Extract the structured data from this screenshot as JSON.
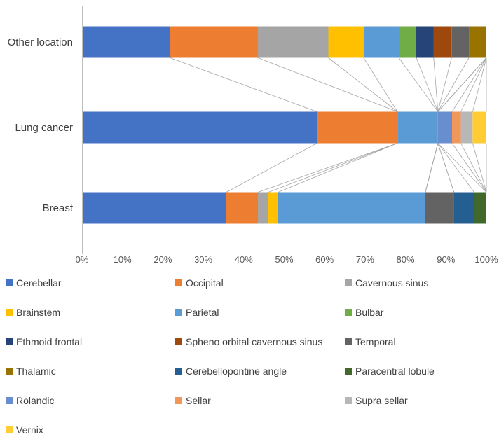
{
  "figure": {
    "background": "#FFFFFF",
    "axis_line_color": "#BFBFBF",
    "connector_line_color": "#A6A6A6",
    "tick_text_color": "#595959",
    "label_text_color": "#404040"
  },
  "chart_data": {
    "type": "bar",
    "subtype": "horizontal-100pct-stacked",
    "title": "",
    "xlabel": "",
    "ylabel": "",
    "xlim": [
      0,
      100
    ],
    "x_ticks": [
      "0%",
      "10%",
      "20%",
      "30%",
      "40%",
      "50%",
      "60%",
      "70%",
      "80%",
      "90%",
      "100%"
    ],
    "gridlines": false,
    "series_connector_lines": true,
    "legend_position": "bottom",
    "legend_columns": 3,
    "categories": [
      "Other location",
      "Lung cancer",
      "Breast"
    ],
    "series": [
      {
        "name": "Cerebellar",
        "color": "#4472C4",
        "values": [
          21.7,
          58.1,
          35.7
        ]
      },
      {
        "name": "Occipital",
        "color": "#ED7D31",
        "values": [
          21.7,
          19.9,
          7.8
        ]
      },
      {
        "name": "Cavernous sinus",
        "color": "#A5A5A5",
        "values": [
          17.4,
          0,
          2.6
        ]
      },
      {
        "name": "Brainstem",
        "color": "#FFC000",
        "values": [
          8.7,
          0,
          2.4
        ]
      },
      {
        "name": "Parietal",
        "color": "#5B9BD5",
        "values": [
          8.7,
          10.0,
          36.4
        ]
      },
      {
        "name": "Bulbar",
        "color": "#70AD47",
        "values": [
          4.3,
          0,
          0
        ]
      },
      {
        "name": "Ethmoid frontal",
        "color": "#264478",
        "values": [
          4.3,
          0,
          0
        ]
      },
      {
        "name": "Spheno orbital cavernous sinus",
        "color": "#9E480E",
        "values": [
          4.4,
          0,
          0
        ]
      },
      {
        "name": "Temporal",
        "color": "#636363",
        "values": [
          4.3,
          0,
          7.1
        ]
      },
      {
        "name": "Thalamic",
        "color": "#997300",
        "values": [
          4.3,
          0,
          0
        ]
      },
      {
        "name": "Cerebellopontine angle",
        "color": "#255E91",
        "values": [
          0,
          0,
          5.0
        ]
      },
      {
        "name": "Paracentral lobule",
        "color": "#43682B",
        "values": [
          0,
          0,
          3.0
        ]
      },
      {
        "name": "Rolandic",
        "color": "#698ED0",
        "values": [
          0,
          3.5,
          0
        ]
      },
      {
        "name": "Sellar",
        "color": "#F1975A",
        "values": [
          0,
          2.2,
          0
        ]
      },
      {
        "name": "Supra sellar",
        "color": "#B7B7B7",
        "values": [
          0,
          2.9,
          0
        ]
      },
      {
        "name": "Vernix",
        "color": "#FFCD33",
        "values": [
          0,
          3.4,
          0
        ]
      }
    ]
  }
}
